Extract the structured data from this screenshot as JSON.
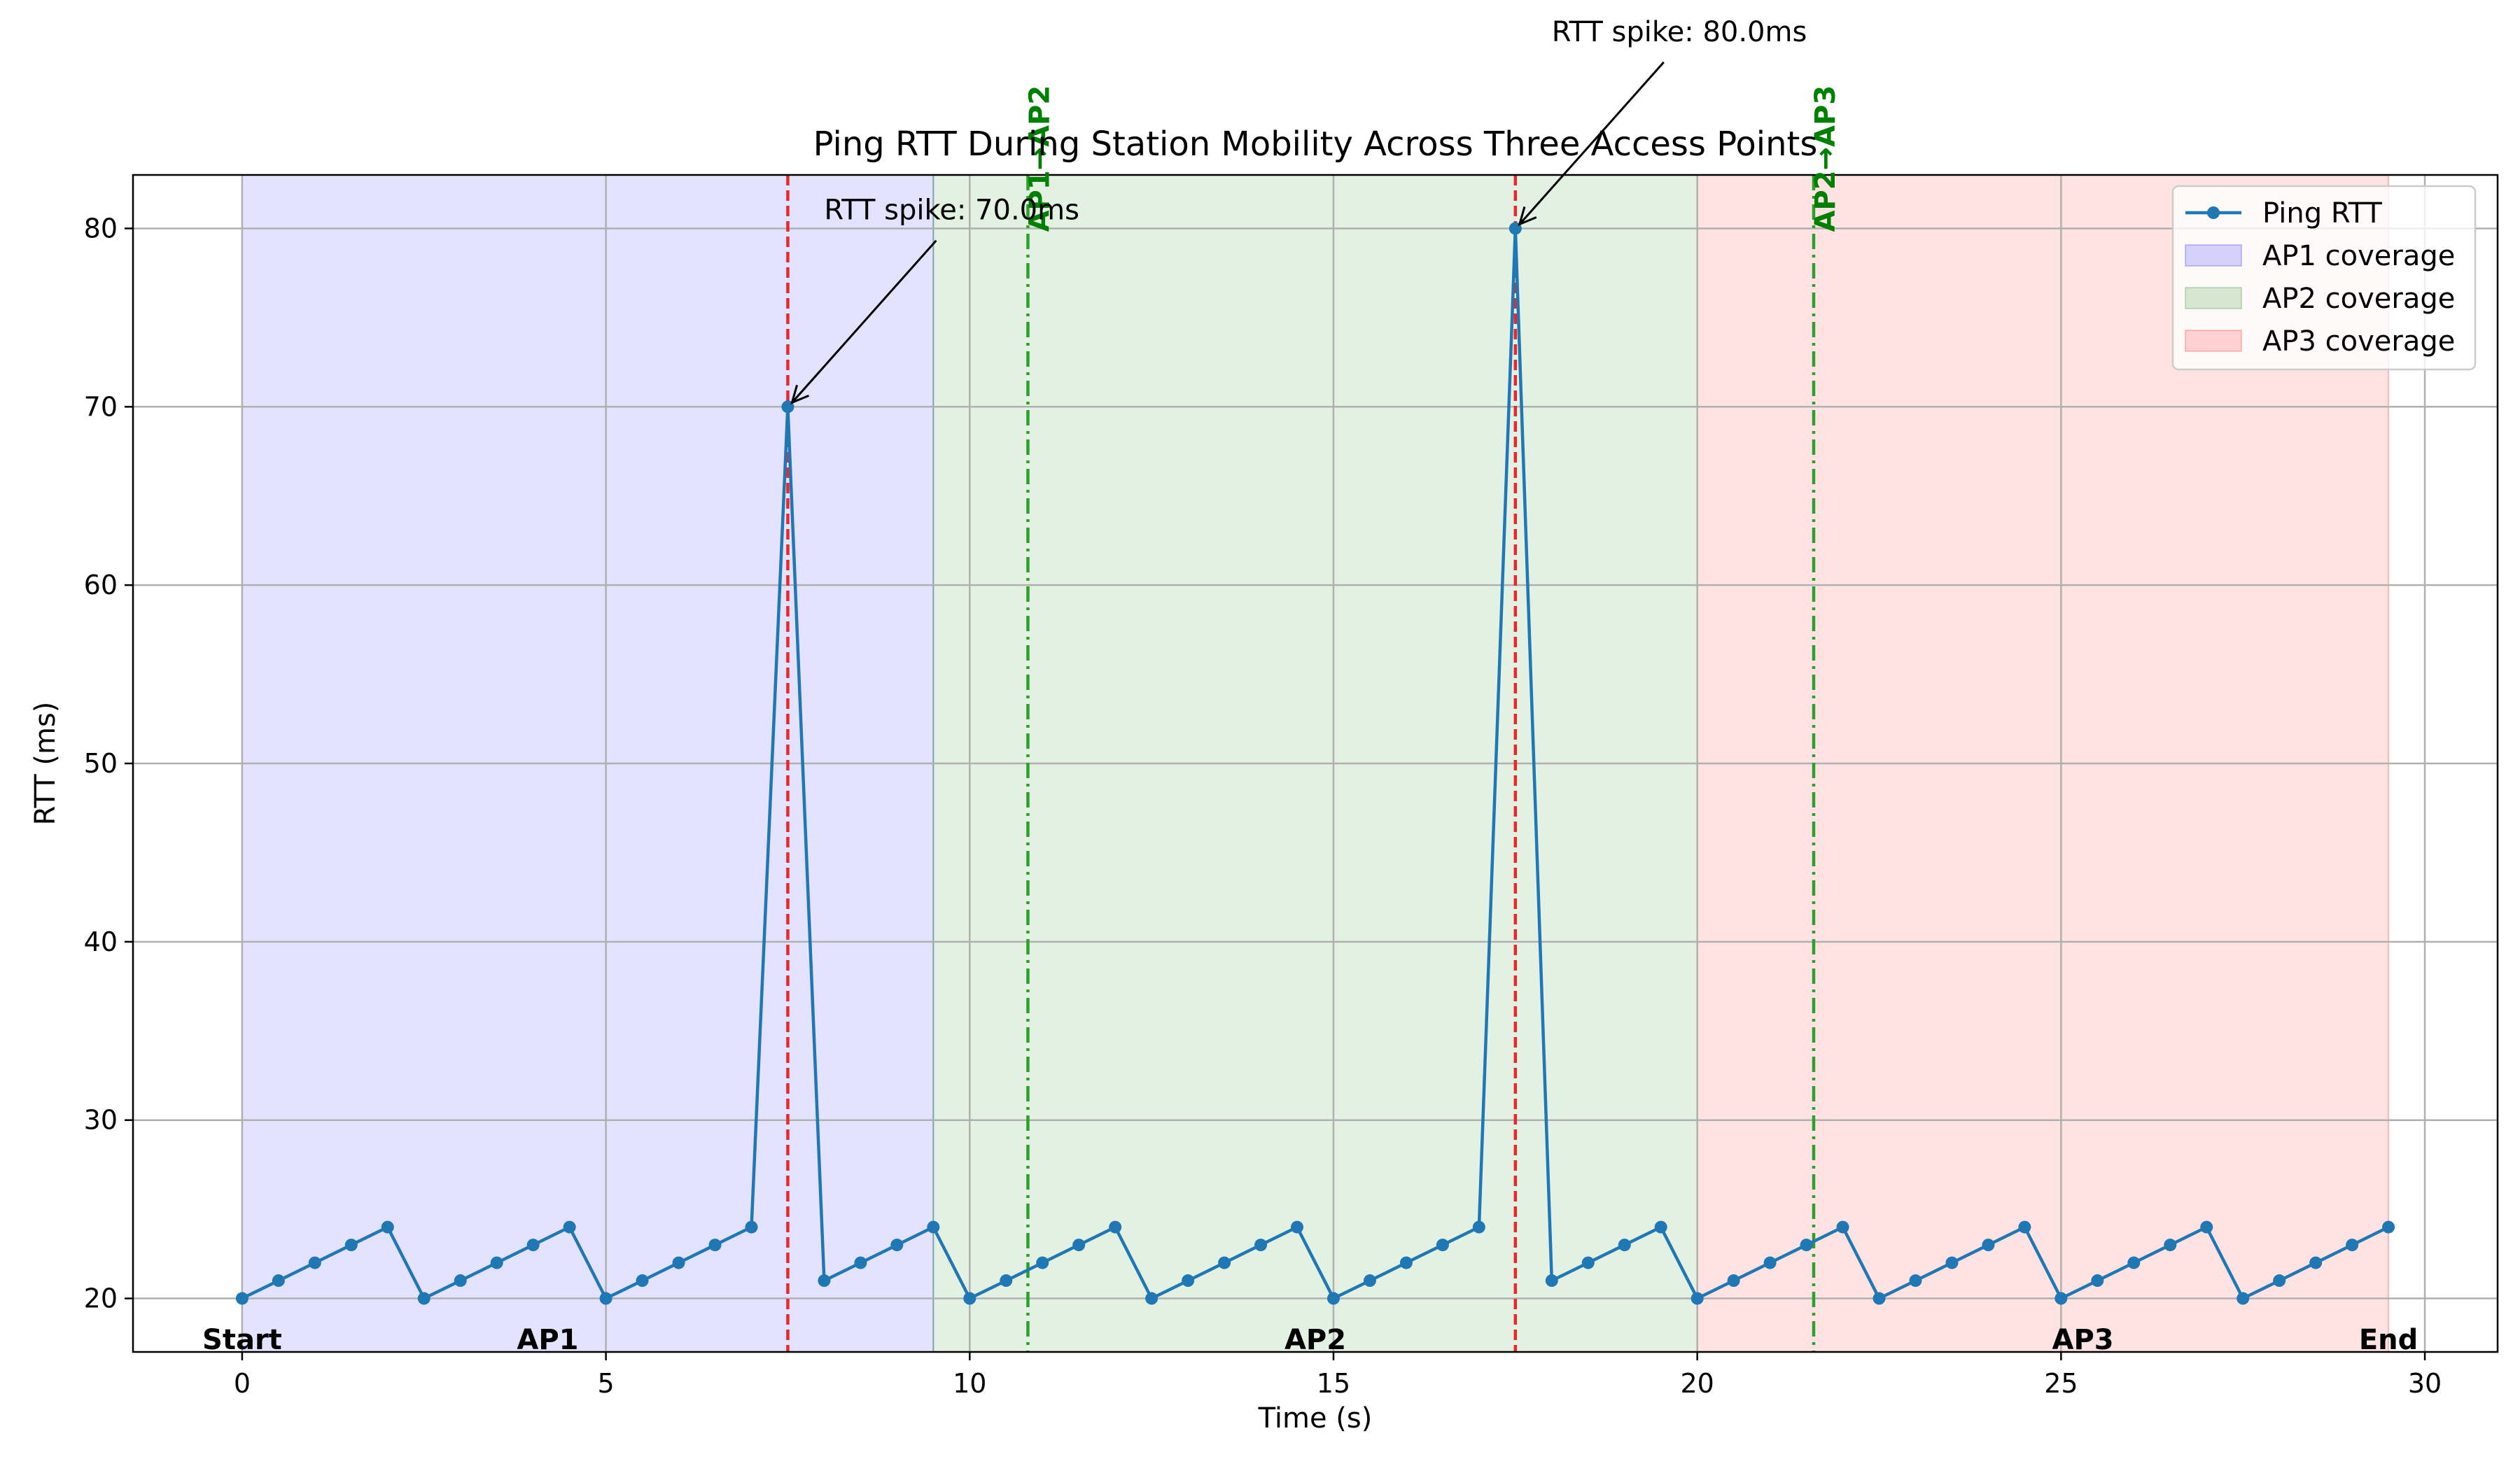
{
  "chart_data": {
    "type": "line",
    "title": "Ping RTT During Station Mobility Across Three Access Points",
    "xlabel": "Time (s)",
    "ylabel": "RTT (ms)",
    "xlim": [
      -1.5,
      31.0
    ],
    "ylim": [
      17,
      83
    ],
    "xticks": [
      0,
      5,
      10,
      15,
      20,
      25,
      30
    ],
    "yticks": [
      20,
      30,
      40,
      50,
      60,
      70,
      80
    ],
    "grid": true,
    "legend_position": "top-right",
    "series": [
      {
        "name": "Ping RTT",
        "color": "#1f77b4",
        "marker": "circle",
        "x": [
          0,
          0.5,
          1.0,
          1.5,
          2.0,
          2.5,
          3.0,
          3.5,
          4.0,
          4.5,
          5.0,
          5.5,
          6.0,
          6.5,
          7.0,
          7.5,
          8.0,
          8.5,
          9.0,
          9.5,
          10.0,
          10.5,
          11.0,
          11.5,
          12.0,
          12.5,
          13.0,
          13.5,
          14.0,
          14.5,
          15.0,
          15.5,
          16.0,
          16.5,
          17.0,
          17.5,
          18.0,
          18.5,
          19.0,
          19.5,
          20.0,
          20.5,
          21.0,
          21.5,
          22.0,
          22.5,
          23.0,
          23.5,
          24.0,
          24.5,
          25.0,
          25.5,
          26.0,
          26.5,
          27.0,
          27.5,
          28.0,
          28.5,
          29.0,
          29.5
        ],
        "y": [
          20,
          21,
          22,
          23,
          24,
          20,
          21,
          22,
          23,
          24,
          20,
          21,
          22,
          23,
          24,
          70,
          21,
          22,
          23,
          24,
          20,
          21,
          22,
          23,
          24,
          20,
          21,
          22,
          23,
          24,
          20,
          21,
          22,
          23,
          24,
          80,
          21,
          22,
          23,
          24,
          20,
          21,
          22,
          23,
          24,
          20,
          21,
          22,
          23,
          24,
          20,
          21,
          22,
          23,
          24,
          20,
          21,
          22,
          23,
          24
        ]
      }
    ],
    "coverage_regions": [
      {
        "name": "AP1 coverage",
        "x_start": 0,
        "x_end": 9.5,
        "color": "#0000ff",
        "alpha": 0.11
      },
      {
        "name": "AP2 coverage",
        "x_start": 9.5,
        "x_end": 20.0,
        "color": "#008000",
        "alpha": 0.11
      },
      {
        "name": "AP3 coverage",
        "x_start": 20.0,
        "x_end": 29.5,
        "color": "#ff0000",
        "alpha": 0.11
      }
    ],
    "spike_lines": [
      {
        "x": 7.5,
        "color": "#e8282b"
      },
      {
        "x": 17.5,
        "color": "#e8282b"
      }
    ],
    "handoff_lines": [
      {
        "x": 10.8,
        "label": "AP1→AP2",
        "color": "#2ca02c"
      },
      {
        "x": 21.6,
        "label": "AP2→AP3",
        "color": "#2ca02c"
      }
    ],
    "annotations": [
      {
        "text": "RTT spike: 70.0ms",
        "point": [
          7.5,
          70
        ],
        "text_pos": [
          8.0,
          80.5
        ]
      },
      {
        "text": "RTT spike: 80.0ms",
        "point": [
          17.5,
          80
        ],
        "text_pos": [
          18.0,
          90.5
        ]
      }
    ],
    "region_labels": [
      {
        "text": "Start",
        "x": 0
      },
      {
        "text": "AP1",
        "x": 4.2
      },
      {
        "text": "AP2",
        "x": 14.75
      },
      {
        "text": "AP3",
        "x": 25.3
      },
      {
        "text": "End",
        "x": 29.5
      }
    ],
    "legend": [
      {
        "label": "Ping RTT",
        "kind": "line"
      },
      {
        "label": "AP1 coverage",
        "kind": "patch",
        "region": 0
      },
      {
        "label": "AP2 coverage",
        "kind": "patch",
        "region": 1
      },
      {
        "label": "AP3 coverage",
        "kind": "patch",
        "region": 2
      }
    ]
  }
}
